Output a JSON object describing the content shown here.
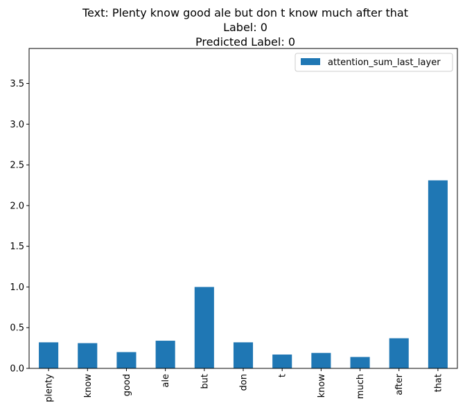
{
  "chart_data": {
    "type": "bar",
    "title_lines": [
      "Text: Plenty know good ale but don t know much after that",
      "Label: 0",
      "Predicted Label: 0"
    ],
    "xlabel": "",
    "ylabel": "",
    "categories": [
      "plenty",
      "know",
      "good",
      "ale",
      "but",
      "don",
      "t",
      "know",
      "much",
      "after",
      "that"
    ],
    "series": [
      {
        "name": "attention_sum_last_layer",
        "color": "#1f77b4",
        "values": [
          0.32,
          0.31,
          0.2,
          0.34,
          1.0,
          0.32,
          0.17,
          0.19,
          0.14,
          0.37,
          2.31
        ]
      }
    ],
    "ylim": [
      0,
      3.93
    ],
    "yticks": [
      "0.0",
      "0.5",
      "1.0",
      "1.5",
      "2.0",
      "2.5",
      "3.0",
      "3.5"
    ],
    "grid": false,
    "legend_position": "top-right"
  }
}
